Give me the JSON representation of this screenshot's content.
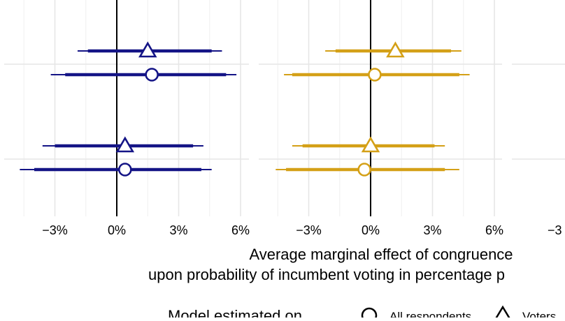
{
  "chart_data": {
    "type": "scatter",
    "title": "",
    "xlabel_line1": "Average marginal effect of congruence",
    "xlabel_line2": "upon probability of incumbent voting in percentage p",
    "x_unit": "percent",
    "xlim": [
      -4.5,
      6.5
    ],
    "x_ticks": [
      -3,
      0,
      3,
      6
    ],
    "x_tick_labels": [
      "−3%",
      "0%",
      "3%",
      "6%"
    ],
    "third_panel_tick_label": "−3",
    "grid": true,
    "legend_position": "bottom",
    "legend": {
      "title": "Model estimated on",
      "items": [
        {
          "label": "All respondents",
          "shape": "circle"
        },
        {
          "label": "Voters",
          "shape": "triangle"
        }
      ]
    },
    "panels": [
      {
        "color": "#141486",
        "groups": [
          {
            "rows": [
              {
                "series": "Voters",
                "shape": "triangle",
                "estimate": 1.5,
                "ci_inner": [
                  -1.4,
                  4.6
                ],
                "ci_outer": [
                  -1.9,
                  5.1
                ]
              },
              {
                "series": "All respondents",
                "shape": "circle",
                "estimate": 1.7,
                "ci_inner": [
                  -2.5,
                  5.3
                ],
                "ci_outer": [
                  -3.2,
                  5.8
                ]
              }
            ]
          },
          {
            "rows": [
              {
                "series": "Voters",
                "shape": "triangle",
                "estimate": 0.4,
                "ci_inner": [
                  -3.0,
                  3.7
                ],
                "ci_outer": [
                  -3.6,
                  4.2
                ]
              },
              {
                "series": "All respondents",
                "shape": "circle",
                "estimate": 0.4,
                "ci_inner": [
                  -4.0,
                  4.1
                ],
                "ci_outer": [
                  -4.7,
                  4.6
                ]
              }
            ]
          }
        ]
      },
      {
        "color": "#D4A017",
        "groups": [
          {
            "rows": [
              {
                "series": "Voters",
                "shape": "triangle",
                "estimate": 1.2,
                "ci_inner": [
                  -1.7,
                  3.9
                ],
                "ci_outer": [
                  -2.2,
                  4.4
                ]
              },
              {
                "series": "All respondents",
                "shape": "circle",
                "estimate": 0.2,
                "ci_inner": [
                  -3.8,
                  4.3
                ],
                "ci_outer": [
                  -4.2,
                  4.8
                ]
              }
            ]
          },
          {
            "rows": [
              {
                "series": "Voters",
                "shape": "triangle",
                "estimate": 0.0,
                "ci_inner": [
                  -3.3,
                  3.1
                ],
                "ci_outer": [
                  -3.8,
                  3.6
                ]
              },
              {
                "series": "All respondents",
                "shape": "circle",
                "estimate": -0.3,
                "ci_inner": [
                  -4.1,
                  3.6
                ],
                "ci_outer": [
                  -4.6,
                  4.3
                ]
              }
            ]
          }
        ]
      }
    ]
  }
}
